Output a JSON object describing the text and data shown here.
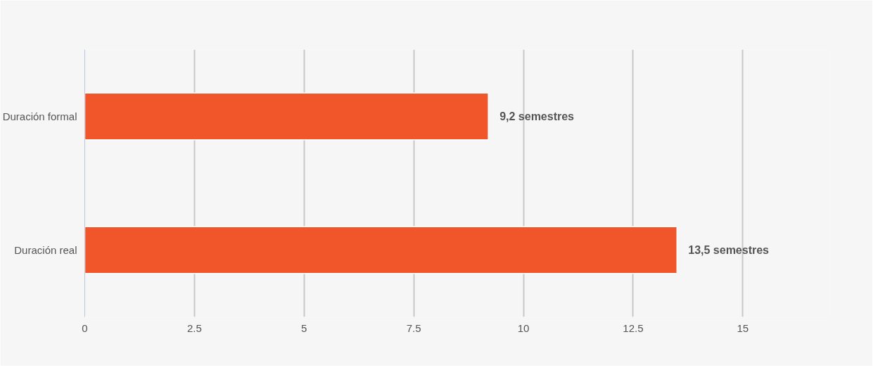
{
  "chart_data": {
    "type": "bar",
    "orientation": "horizontal",
    "categories": [
      "Duración formal",
      "Duración real"
    ],
    "values": [
      9.2,
      13.5
    ],
    "value_labels": [
      "9,2 semestres",
      "13,5 semestres"
    ],
    "color": "#f0562a",
    "xlim": [
      0,
      17
    ],
    "xticks": [
      0,
      2.5,
      5,
      7.5,
      10,
      12.5,
      15
    ],
    "grid": "x"
  }
}
